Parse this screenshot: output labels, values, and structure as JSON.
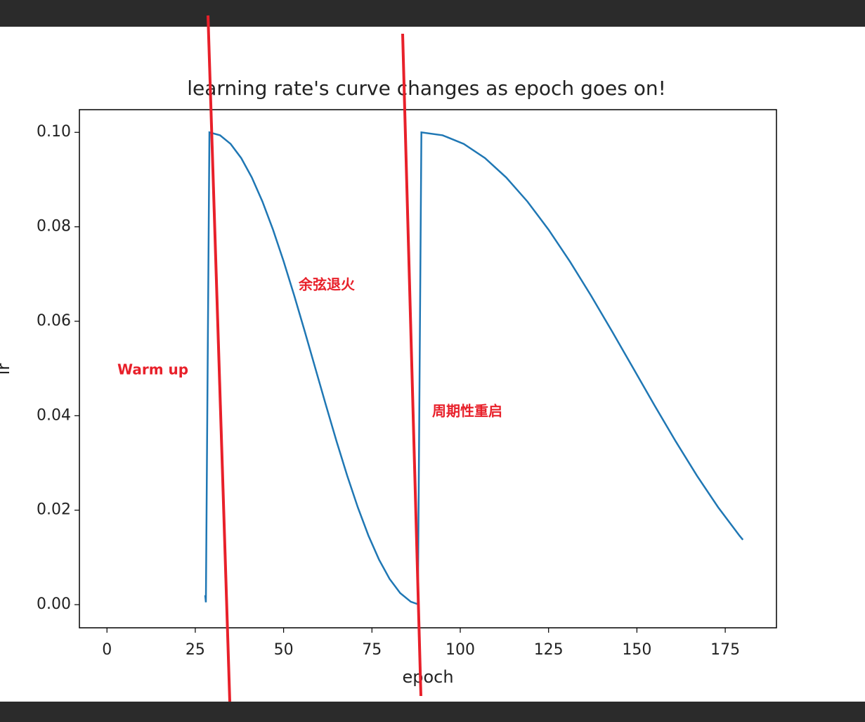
{
  "chart_data": {
    "type": "line",
    "title": "learning rate's curve changes as epoch goes on!",
    "xlabel": "epoch",
    "ylabel": "lr",
    "annotations": [
      "Warm up",
      "余弦退火",
      "周期性重启"
    ],
    "x": [
      27.8,
      28,
      29,
      32,
      35,
      38,
      41,
      44,
      47,
      50,
      53,
      56,
      59,
      62,
      65,
      68,
      71,
      74,
      77,
      80,
      83,
      86,
      88,
      89,
      95,
      101,
      107,
      113,
      119,
      125,
      131,
      137,
      143,
      149,
      155,
      161,
      167,
      173,
      179,
      180
    ],
    "series": [
      {
        "name": "lr",
        "color": "#1f77b4",
        "values": [
          0.002,
          0.0005,
          0.1,
          0.09938,
          0.09755,
          0.09455,
          0.09045,
          0.08536,
          0.07939,
          0.0727,
          0.06545,
          0.05782,
          0.05,
          0.04218,
          0.03455,
          0.0273,
          0.02061,
          0.01464,
          0.00955,
          0.00545,
          0.00245,
          0.00062,
          0.0001,
          0.1,
          0.09938,
          0.09755,
          0.09455,
          0.09045,
          0.08536,
          0.07939,
          0.0727,
          0.06545,
          0.05782,
          0.05,
          0.04218,
          0.03455,
          0.0273,
          0.02061,
          0.01464,
          0.01373
        ]
      }
    ],
    "xlim": [
      -7.8,
      189.5
    ],
    "ylim": [
      -0.0049,
      0.1048
    ],
    "xticks": [
      0,
      25,
      50,
      75,
      100,
      125,
      150,
      175
    ],
    "yticks": [
      {
        "value": 0,
        "label": "0.00"
      },
      0.02,
      0.04,
      0.06,
      0.08,
      {
        "value": 0.1,
        "label": "0.10"
      }
    ],
    "grid": false
  }
}
